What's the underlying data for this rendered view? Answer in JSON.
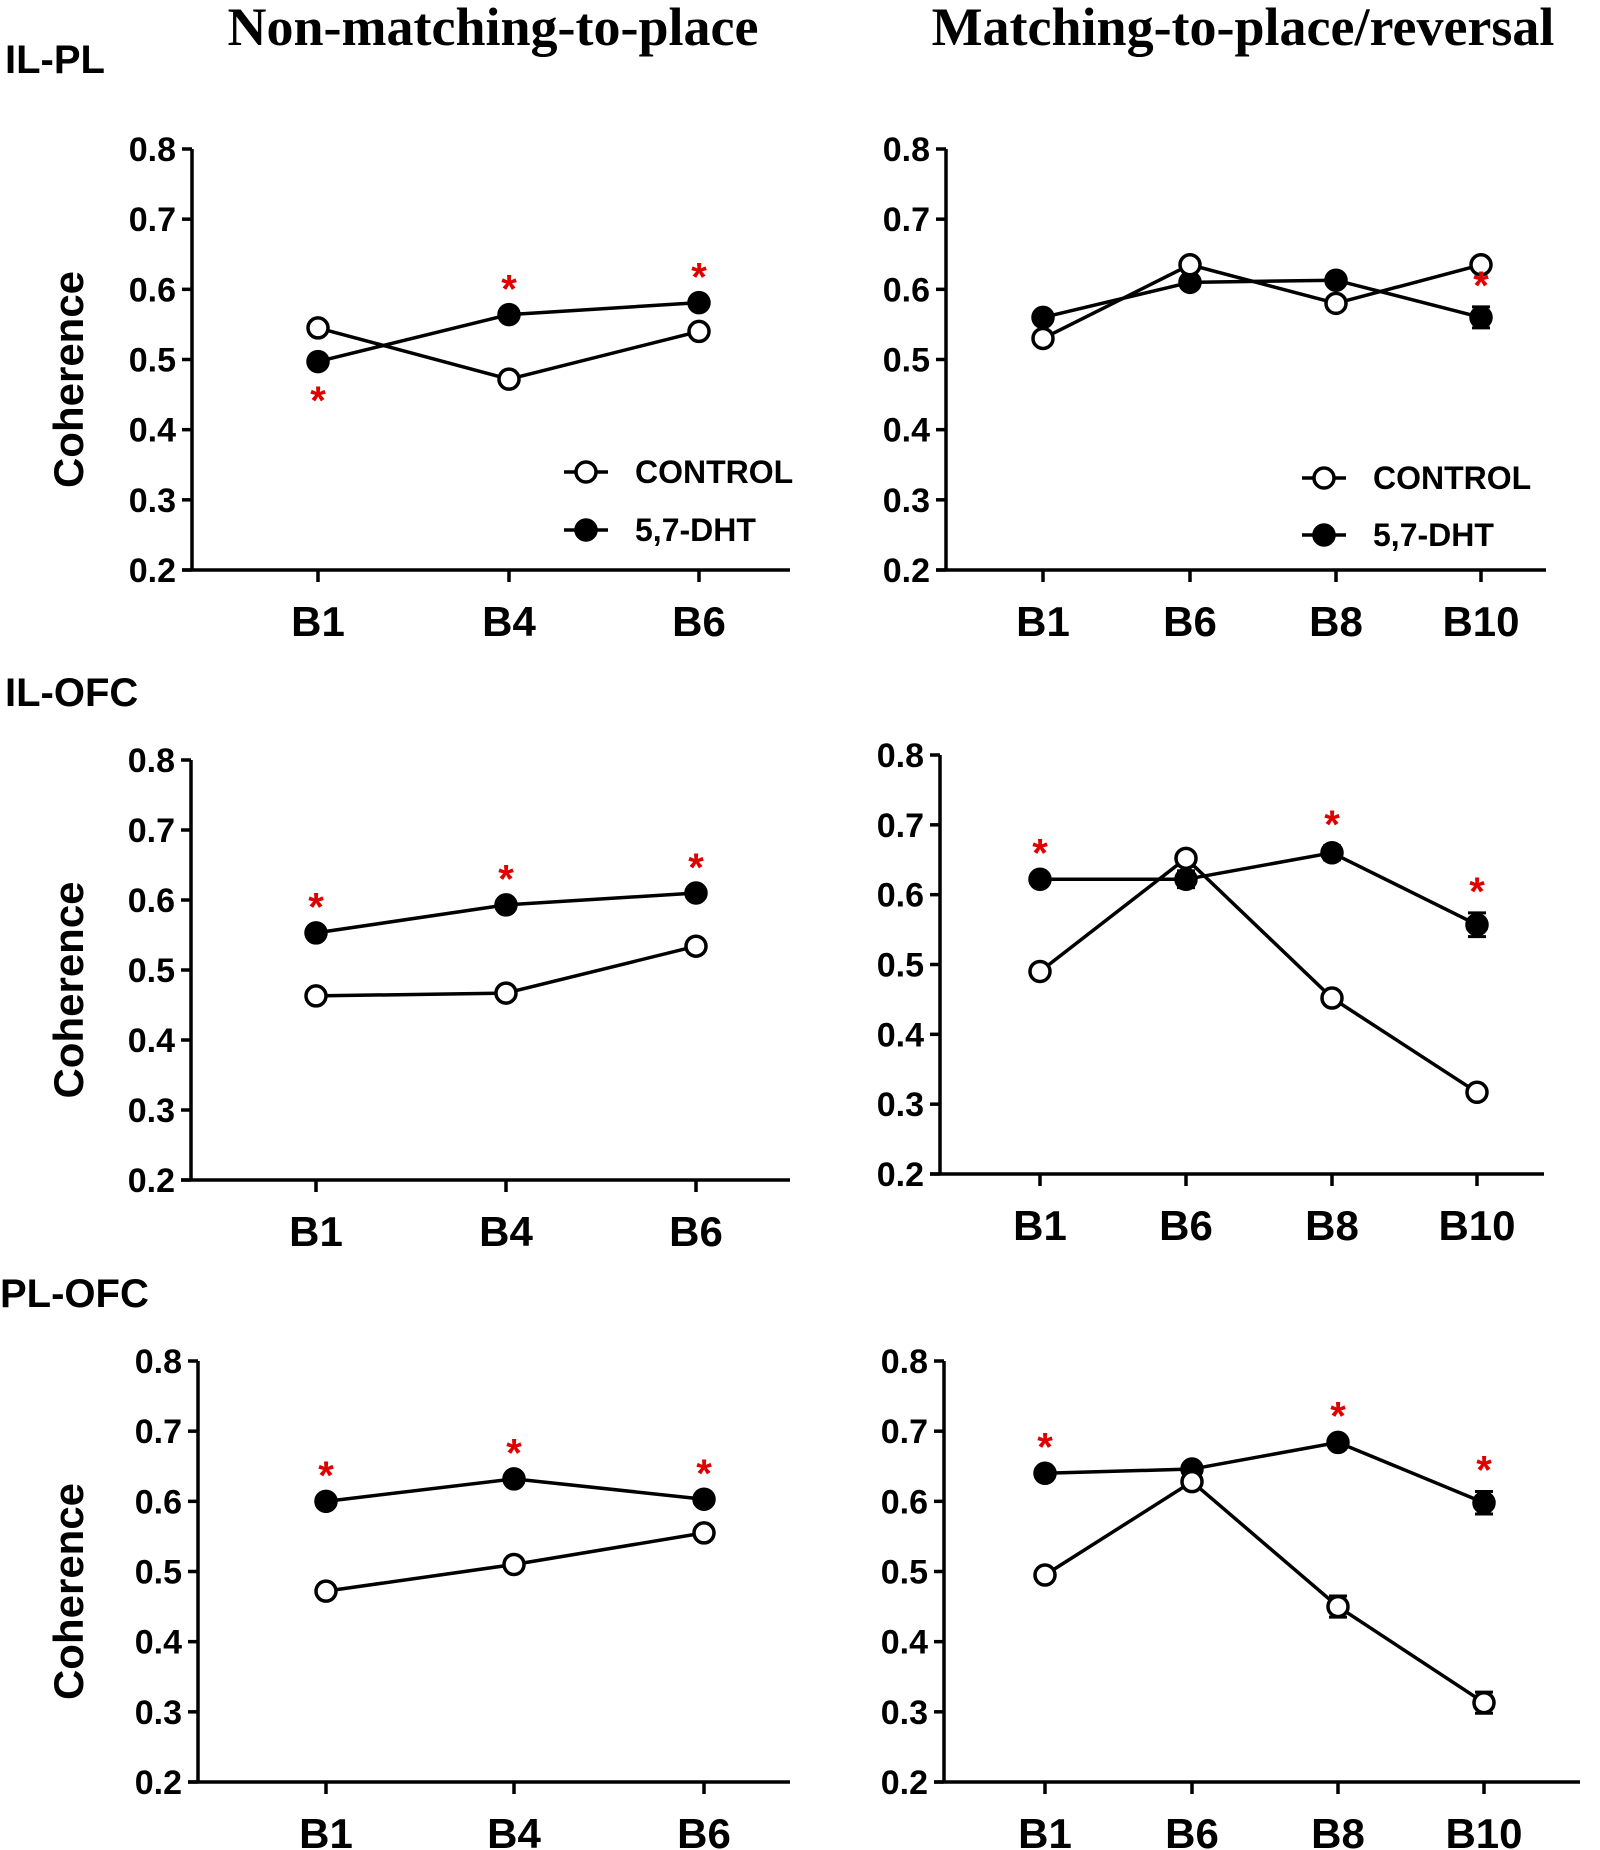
{
  "column_titles": [
    "Non-matching-to-place",
    "Matching-to-place/reversal"
  ],
  "row_labels": [
    "IL-PL",
    "IL-OFC",
    "PL-OFC"
  ],
  "colors": {
    "axis": "#000000",
    "significance": "#e00000",
    "control_fill": "#ffffff",
    "dht_fill": "#000000"
  },
  "chart_data": [
    {
      "type": "line",
      "panel": "IL-PL / Non-matching-to-place",
      "categories": [
        "B1",
        "B4",
        "B6"
      ],
      "ylabel": "Coherence",
      "ylim": [
        0.2,
        0.8
      ],
      "yticks": [
        "0.2",
        "0.3",
        "0.4",
        "0.5",
        "0.6",
        "0.7",
        "0.8"
      ],
      "legend": "bottom-right",
      "series": [
        {
          "name": "CONTROL",
          "values": [
            0.545,
            0.472,
            0.54
          ],
          "errors": [
            0.005,
            0.005,
            0.005
          ]
        },
        {
          "name": "5,7-DHT",
          "values": [
            0.497,
            0.564,
            0.581
          ],
          "errors": [
            0.006,
            0.006,
            0.006
          ]
        }
      ],
      "significance": [
        {
          "category": "B1",
          "position": "below"
        },
        {
          "category": "B4",
          "position": "above"
        },
        {
          "category": "B6",
          "position": "above"
        }
      ]
    },
    {
      "type": "line",
      "panel": "IL-PL / Matching-to-place/reversal",
      "categories": [
        "B1",
        "B6",
        "B8",
        "B10"
      ],
      "ylabel": "",
      "ylim": [
        0.2,
        0.8
      ],
      "yticks": [
        "0.2",
        "0.3",
        "0.4",
        "0.5",
        "0.6",
        "0.7",
        "0.8"
      ],
      "legend": "bottom-right",
      "series": [
        {
          "name": "CONTROL",
          "values": [
            0.53,
            0.635,
            0.58,
            0.635
          ],
          "errors": [
            0.005,
            0.005,
            0.005,
            0.005
          ]
        },
        {
          "name": "5,7-DHT",
          "values": [
            0.56,
            0.61,
            0.613,
            0.56
          ],
          "errors": [
            0.006,
            0.006,
            0.008,
            0.015
          ]
        }
      ],
      "significance": [
        {
          "category": "B10",
          "position": "above"
        }
      ]
    },
    {
      "type": "line",
      "panel": "IL-OFC / Non-matching-to-place",
      "categories": [
        "B1",
        "B4",
        "B6"
      ],
      "ylabel": "Coherence",
      "ylim": [
        0.2,
        0.8
      ],
      "yticks": [
        "0.2",
        "0.3",
        "0.4",
        "0.5",
        "0.6",
        "0.7",
        "0.8"
      ],
      "series": [
        {
          "name": "CONTROL",
          "values": [
            0.463,
            0.467,
            0.534
          ],
          "errors": [
            0.005,
            0.005,
            0.005
          ]
        },
        {
          "name": "5,7-DHT",
          "values": [
            0.553,
            0.593,
            0.61
          ],
          "errors": [
            0.006,
            0.006,
            0.006
          ]
        }
      ],
      "significance": [
        {
          "category": "B1",
          "position": "above"
        },
        {
          "category": "B4",
          "position": "above"
        },
        {
          "category": "B6",
          "position": "above"
        }
      ]
    },
    {
      "type": "line",
      "panel": "IL-OFC / Matching-to-place/reversal",
      "categories": [
        "B1",
        "B6",
        "B8",
        "B10"
      ],
      "ylabel": "",
      "ylim": [
        0.2,
        0.8
      ],
      "yticks": [
        "0.2",
        "0.3",
        "0.4",
        "0.5",
        "0.6",
        "0.7",
        "0.8"
      ],
      "series": [
        {
          "name": "CONTROL",
          "values": [
            0.49,
            0.652,
            0.452,
            0.317
          ],
          "errors": [
            0.005,
            0.006,
            0.006,
            0.006
          ]
        },
        {
          "name": "5,7-DHT",
          "values": [
            0.622,
            0.622,
            0.66,
            0.557
          ],
          "errors": [
            0.007,
            0.012,
            0.01,
            0.017
          ]
        }
      ],
      "significance": [
        {
          "category": "B1",
          "position": "above"
        },
        {
          "category": "B8",
          "position": "above"
        },
        {
          "category": "B10",
          "position": "above"
        }
      ]
    },
    {
      "type": "line",
      "panel": "PL-OFC / Non-matching-to-place",
      "categories": [
        "B1",
        "B4",
        "B6"
      ],
      "ylabel": "Coherence",
      "ylim": [
        0.2,
        0.8
      ],
      "yticks": [
        "0.2",
        "0.3",
        "0.4",
        "0.5",
        "0.6",
        "0.7",
        "0.8"
      ],
      "series": [
        {
          "name": "CONTROL",
          "values": [
            0.472,
            0.51,
            0.555
          ],
          "errors": [
            0.005,
            0.005,
            0.005
          ]
        },
        {
          "name": "5,7-DHT",
          "values": [
            0.6,
            0.632,
            0.603
          ],
          "errors": [
            0.006,
            0.006,
            0.006
          ]
        }
      ],
      "significance": [
        {
          "category": "B1",
          "position": "above"
        },
        {
          "category": "B4",
          "position": "above"
        },
        {
          "category": "B6",
          "position": "above"
        }
      ]
    },
    {
      "type": "line",
      "panel": "PL-OFC / Matching-to-place/reversal",
      "categories": [
        "B1",
        "B6",
        "B8",
        "B10"
      ],
      "ylabel": "",
      "ylim": [
        0.2,
        0.8
      ],
      "yticks": [
        "0.2",
        "0.3",
        "0.4",
        "0.5",
        "0.6",
        "0.7",
        "0.8"
      ],
      "series": [
        {
          "name": "CONTROL",
          "values": [
            0.495,
            0.628,
            0.45,
            0.313
          ],
          "errors": [
            0.005,
            0.008,
            0.015,
            0.015
          ]
        },
        {
          "name": "5,7-DHT",
          "values": [
            0.64,
            0.646,
            0.684,
            0.598
          ],
          "errors": [
            0.007,
            0.007,
            0.007,
            0.016
          ]
        }
      ],
      "significance": [
        {
          "category": "B1",
          "position": "above"
        },
        {
          "category": "B8",
          "position": "above"
        },
        {
          "category": "B10",
          "position": "above"
        }
      ]
    }
  ]
}
